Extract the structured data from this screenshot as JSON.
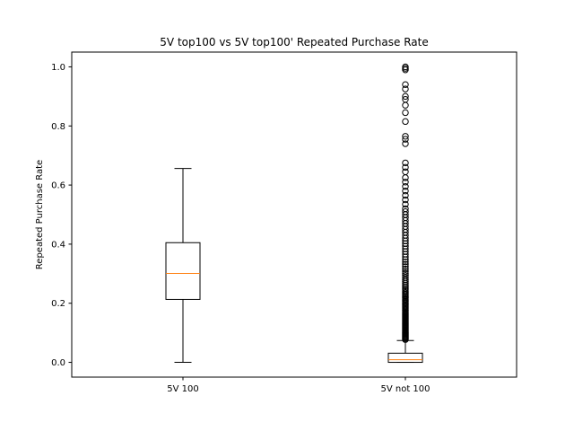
{
  "chart_data": {
    "type": "box",
    "title": "5V top100 vs 5V top100' Repeated Purchase Rate",
    "xlabel": "",
    "ylabel": "Repeated Purchase Rate",
    "ylim": [
      -0.05,
      1.05
    ],
    "y_ticks": [
      "0.0",
      "0.2",
      "0.4",
      "0.6",
      "0.8",
      "1.0"
    ],
    "grid": false,
    "colors": {
      "box": "#000000",
      "median": "#ff7f0e",
      "outlier": "#000000"
    },
    "series": [
      {
        "category": "5V 100",
        "whisker_low": 0.0,
        "q1": 0.213,
        "median": 0.301,
        "q3": 0.405,
        "whisker_high": 0.656,
        "outliers": []
      },
      {
        "category": "5V not 100",
        "whisker_low": 0.0,
        "q1": 0.0,
        "median": 0.009,
        "q3": 0.031,
        "whisker_high": 0.074,
        "outliers": [
          0.077,
          0.08,
          0.083,
          0.086,
          0.089,
          0.092,
          0.095,
          0.098,
          0.101,
          0.104,
          0.107,
          0.11,
          0.113,
          0.116,
          0.119,
          0.122,
          0.125,
          0.128,
          0.131,
          0.134,
          0.137,
          0.14,
          0.143,
          0.146,
          0.149,
          0.152,
          0.155,
          0.158,
          0.161,
          0.164,
          0.167,
          0.17,
          0.174,
          0.178,
          0.182,
          0.186,
          0.19,
          0.194,
          0.198,
          0.202,
          0.206,
          0.21,
          0.214,
          0.218,
          0.222,
          0.226,
          0.23,
          0.235,
          0.24,
          0.245,
          0.25,
          0.256,
          0.262,
          0.268,
          0.274,
          0.28,
          0.287,
          0.294,
          0.301,
          0.308,
          0.316,
          0.324,
          0.332,
          0.34,
          0.348,
          0.357,
          0.366,
          0.375,
          0.384,
          0.393,
          0.402,
          0.411,
          0.42,
          0.43,
          0.44,
          0.45,
          0.46,
          0.47,
          0.48,
          0.49,
          0.5,
          0.51,
          0.52,
          0.535,
          0.55,
          0.565,
          0.58,
          0.595,
          0.61,
          0.625,
          0.645,
          0.66,
          0.675,
          0.74,
          0.755,
          0.765,
          0.815,
          0.845,
          0.87,
          0.89,
          0.9,
          0.925,
          0.94,
          0.99,
          0.995,
          1.0
        ]
      }
    ]
  }
}
